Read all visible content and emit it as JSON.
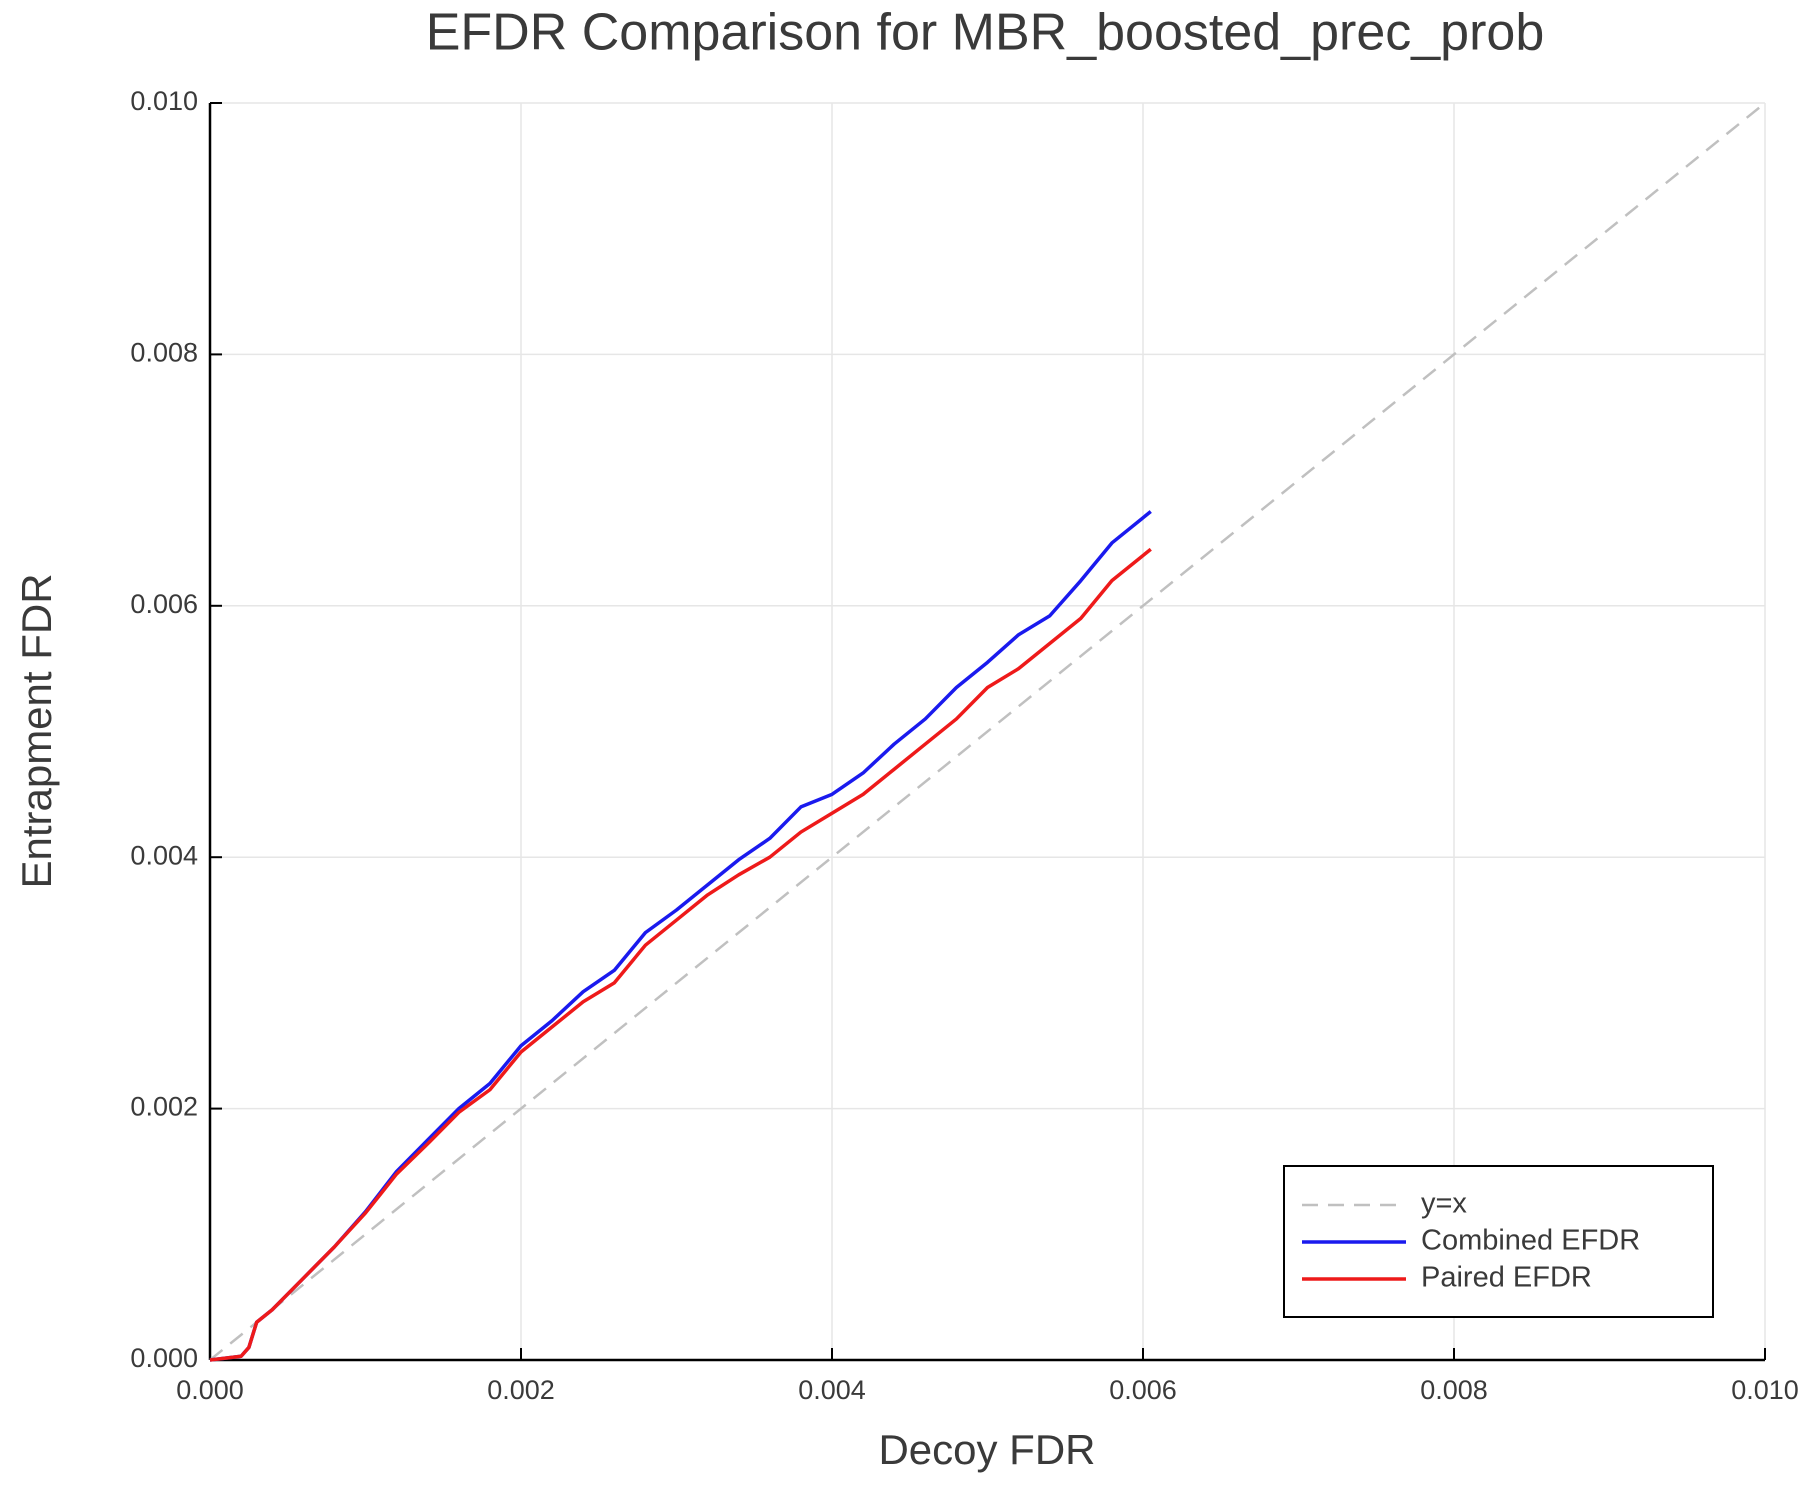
{
  "chart_data": {
    "type": "line",
    "title": "EFDR Comparison for MBR_boosted_prec_prob",
    "x_label": "Decoy FDR",
    "y_label": "Entrapment FDR",
    "xlim": [
      0,
      0.01
    ],
    "ylim": [
      0,
      0.01
    ],
    "xticks": [
      {
        "value": 0,
        "label": "0.000"
      },
      0.002,
      0.004,
      0.006,
      0.008,
      {
        "value": 0.01,
        "label": "0.010"
      }
    ],
    "yticks": [
      {
        "value": 0,
        "label": "0.000"
      },
      0.002,
      0.004,
      0.006,
      0.008,
      {
        "value": 0.01,
        "label": "0.010"
      }
    ],
    "grid": true,
    "legend": "lower right",
    "series": [
      {
        "name": "y=x",
        "color": "#c0c0c0",
        "linestyle": "dashed",
        "x": [
          0,
          0.01
        ],
        "values": [
          0,
          0.01
        ]
      },
      {
        "name": "Combined EFDR",
        "color": "#1a1aee",
        "linestyle": "solid",
        "x": [
          0,
          0.0002,
          0.00025,
          0.0003,
          0.0004,
          0.0006,
          0.0008,
          0.001,
          0.0012,
          0.0014,
          0.0016,
          0.0018,
          0.002,
          0.0022,
          0.0024,
          0.0026,
          0.0028,
          0.003,
          0.0032,
          0.0034,
          0.0036,
          0.0038,
          0.004,
          0.0042,
          0.0044,
          0.0046,
          0.0048,
          0.005,
          0.0052,
          0.0054,
          0.0056,
          0.0058,
          0.00605
        ],
        "values": [
          0,
          3e-05,
          0.0001,
          0.0003,
          0.0004,
          0.00065,
          0.0009,
          0.00118,
          0.0015,
          0.00175,
          0.002,
          0.0022,
          0.0025,
          0.0027,
          0.00293,
          0.0031,
          0.0034,
          0.00358,
          0.00378,
          0.00398,
          0.00415,
          0.0044,
          0.0045,
          0.00467,
          0.0049,
          0.0051,
          0.00535,
          0.00555,
          0.00577,
          0.00592,
          0.0062,
          0.0065,
          0.00675
        ]
      },
      {
        "name": "Paired EFDR",
        "color": "#ee1a1a",
        "linestyle": "solid",
        "x": [
          0,
          0.0002,
          0.00025,
          0.0003,
          0.0004,
          0.0006,
          0.0008,
          0.001,
          0.0012,
          0.0014,
          0.0016,
          0.0018,
          0.002,
          0.0022,
          0.0024,
          0.0026,
          0.0028,
          0.003,
          0.0032,
          0.0034,
          0.0036,
          0.0038,
          0.004,
          0.0042,
          0.0044,
          0.0046,
          0.0048,
          0.005,
          0.0052,
          0.0054,
          0.0056,
          0.0058,
          0.00605
        ],
        "values": [
          0,
          3e-05,
          0.0001,
          0.0003,
          0.0004,
          0.00065,
          0.0009,
          0.00117,
          0.00148,
          0.00172,
          0.00197,
          0.00215,
          0.00245,
          0.00265,
          0.00285,
          0.003,
          0.0033,
          0.0035,
          0.0037,
          0.00386,
          0.004,
          0.0042,
          0.00435,
          0.0045,
          0.0047,
          0.0049,
          0.0051,
          0.00535,
          0.0055,
          0.0057,
          0.0059,
          0.0062,
          0.00645
        ]
      }
    ]
  }
}
